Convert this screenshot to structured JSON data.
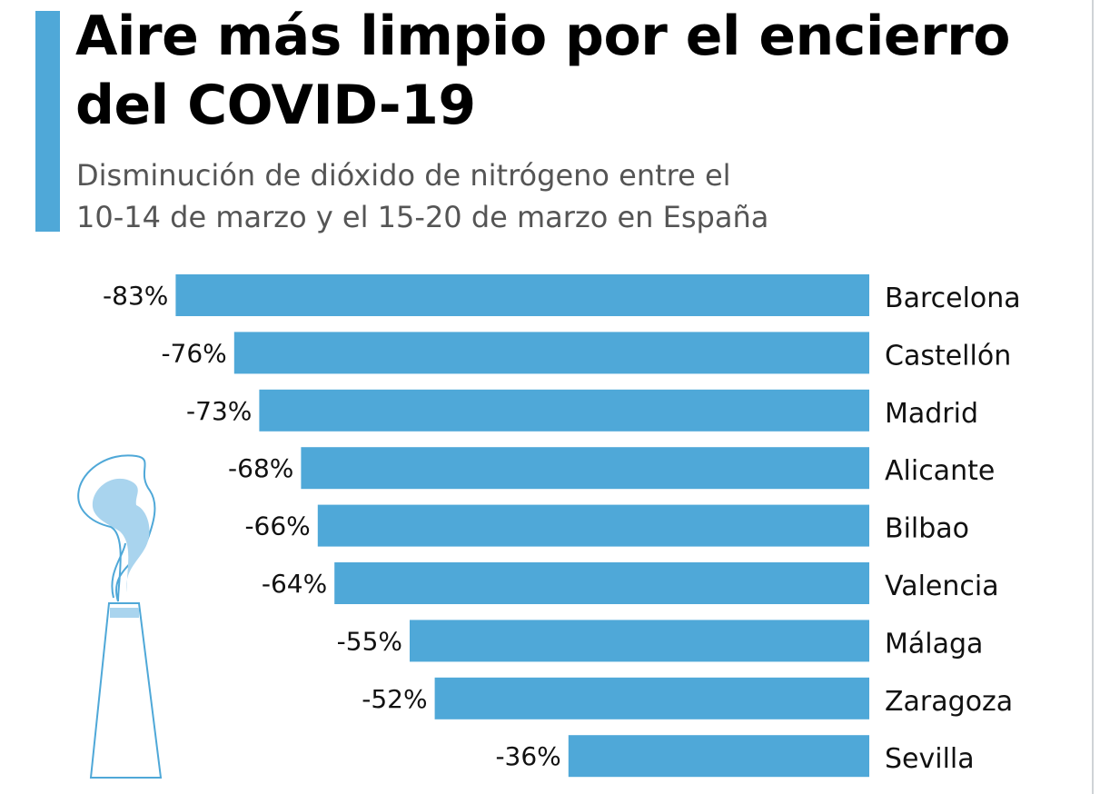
{
  "title_line1": "Aire más limpio por el encierro",
  "title_line2": "del COVID-19",
  "subtitle_line1": "Disminución de dióxido de nitrógeno entre el",
  "subtitle_line2": "10-14 de marzo y el 15-20 de marzo en España",
  "colors": {
    "bar": "#4fa8d8",
    "accent": "#4fa8d8",
    "illustration_stroke": "#4fa8d8",
    "illustration_fill": "#a9d4ee"
  },
  "illustration": "factory-chimney-smoke-icon",
  "chart_data": {
    "type": "bar",
    "orientation": "horizontal",
    "categories": [
      "Barcelona",
      "Castellón",
      "Madrid",
      "Alicante",
      "Bilbao",
      "Valencia",
      "Málaga",
      "Zaragoza",
      "Sevilla"
    ],
    "values": [
      -83,
      -76,
      -73,
      -68,
      -66,
      -64,
      -55,
      -52,
      -36
    ],
    "value_labels": [
      "-83%",
      "-76%",
      "-73%",
      "-68%",
      "-66%",
      "-64%",
      "-55%",
      "-52%",
      "-36%"
    ],
    "title": "Aire más limpio por el encierro del COVID-19",
    "subtitle": "Disminución de dióxido de nitrógeno entre el 10-14 de marzo y el 15-20 de marzo en España",
    "xlabel": "",
    "ylabel": "",
    "unit": "%",
    "grid": false,
    "legend": "none",
    "category_labels": "right"
  }
}
